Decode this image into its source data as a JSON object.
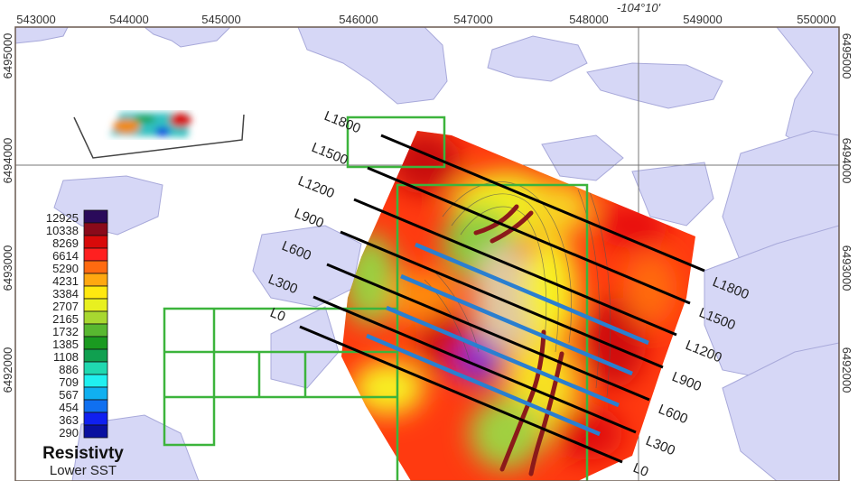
{
  "map": {
    "longitude_label": "-104°10'",
    "x_ticks": [
      "543000",
      "544000",
      "545000",
      "546000",
      "547000",
      "548000",
      "549000",
      "550000"
    ],
    "y_ticks_left": [
      "6495000",
      "6494000",
      "6493000",
      "6492000"
    ],
    "y_ticks_right": [
      "6495000",
      "6494000",
      "6493000",
      "6492000"
    ],
    "survey_lines_left": [
      "L1800",
      "L1500",
      "L1200",
      "L900",
      "L600",
      "L300",
      "L0"
    ],
    "survey_lines_right": [
      "L1800",
      "L1500",
      "L1200",
      "L900",
      "L600",
      "L300",
      "L0"
    ],
    "colors": {
      "lake": "#d6d7f6",
      "grid": "#3cb43c",
      "line": "#000000",
      "proposed": "#2a7fd0",
      "dyke": "#8b1a1a"
    }
  },
  "legend": {
    "title": "Resistivty",
    "subtitle": "Lower SST",
    "values": [
      "12925",
      "10338",
      "8269",
      "6614",
      "5290",
      "4231",
      "3384",
      "2707",
      "2165",
      "1732",
      "1385",
      "1108",
      "886",
      "709",
      "567",
      "454",
      "363",
      "290"
    ],
    "colors": [
      "#2a0a5a",
      "#8a0a1a",
      "#d80a0a",
      "#ff2020",
      "#ff6a10",
      "#ffa810",
      "#ffe810",
      "#e8f020",
      "#a8d830",
      "#58b830",
      "#1a9a20",
      "#10a050",
      "#20d8b0",
      "#20f0f0",
      "#10b0f0",
      "#1070f0",
      "#1020f0",
      "#0a10a0"
    ]
  }
}
